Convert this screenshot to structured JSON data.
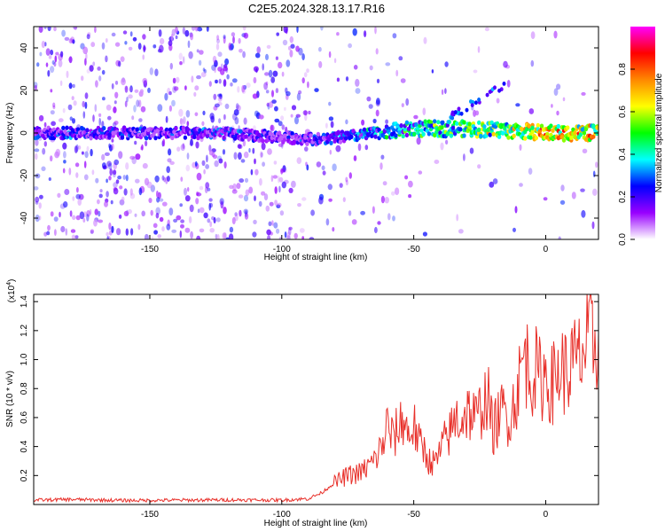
{
  "title": "C2E5.2024.328.13.17.R16",
  "chart_data": [
    {
      "type": "heatmap",
      "xlabel": "Height of straight line (km)",
      "ylabel": "Frequency (Hz)",
      "xlim": [
        -194,
        20
      ],
      "ylim": [
        -50,
        50
      ],
      "x_ticks": [
        -150,
        -100,
        -50,
        0
      ],
      "y_ticks": [
        -40,
        -20,
        0,
        20,
        40
      ],
      "colorbar": {
        "label": "Normalized spectral amplitude",
        "range": [
          0,
          1
        ],
        "ticks": [
          "0.0",
          "0.2",
          "0.4",
          "0.6",
          "0.8"
        ],
        "colors": [
          "#ffffff",
          "#9900ff",
          "#0000ff",
          "#00ffff",
          "#00ff00",
          "#ffff00",
          "#ff8800",
          "#ff0000",
          "#ff00ff"
        ]
      },
      "ridge": [
        {
          "x": -194,
          "f": 0,
          "amp": 0.3
        },
        {
          "x": -175,
          "f": 0,
          "amp": 0.35
        },
        {
          "x": -150,
          "f": 0,
          "amp": 0.3
        },
        {
          "x": -125,
          "f": 0,
          "amp": 0.35
        },
        {
          "x": -100,
          "f": -2,
          "amp": 0.25
        },
        {
          "x": -85,
          "f": -3,
          "amp": 0.35
        },
        {
          "x": -70,
          "f": -1,
          "amp": 0.45
        },
        {
          "x": -50,
          "f": 2,
          "amp": 0.55
        },
        {
          "x": -30,
          "f": 2,
          "amp": 0.65
        },
        {
          "x": -10,
          "f": 1,
          "amp": 0.8
        },
        {
          "x": 0,
          "f": 0,
          "amp": 0.9
        },
        {
          "x": 20,
          "f": 0,
          "amp": 0.85
        }
      ]
    },
    {
      "type": "line",
      "xlabel": "Height of straight line (km)",
      "ylabel": "SNR (10 * v/v)",
      "y_multiplier": "(x10",
      "y_multiplier_exp": "4",
      "y_multiplier_close": ")",
      "xlim": [
        -194,
        20
      ],
      "ylim": [
        0,
        14500
      ],
      "x_ticks": [
        -150,
        -100,
        -50,
        0
      ],
      "y_ticks": [
        {
          "value": 2000,
          "label": "0.2"
        },
        {
          "value": 4000,
          "label": "0.4"
        },
        {
          "value": 6000,
          "label": "0.6"
        },
        {
          "value": 8000,
          "label": "0.8"
        },
        {
          "value": 10000,
          "label": "1.0"
        },
        {
          "value": 12000,
          "label": "1.2"
        },
        {
          "value": 14000,
          "label": "1.4"
        }
      ],
      "series": [
        {
          "color": "#e8302a",
          "x": [
            -194,
            -180,
            -160,
            -140,
            -120,
            -100,
            -90,
            -85,
            -80,
            -75,
            -70,
            -65,
            -62,
            -60,
            -58,
            -56,
            -54,
            -52,
            -50,
            -48,
            -46,
            -44,
            -42,
            -40,
            -38,
            -36,
            -34,
            -32,
            -30,
            -28,
            -26,
            -24,
            -22,
            -20,
            -18,
            -16,
            -14,
            -12,
            -10,
            -8,
            -6,
            -4,
            -2,
            0,
            2,
            4,
            6,
            8,
            10,
            12,
            14,
            16,
            18,
            20
          ],
          "y": [
            300,
            350,
            280,
            300,
            320,
            300,
            400,
            800,
            1500,
            2000,
            2200,
            3000,
            4000,
            5500,
            4500,
            5200,
            6000,
            4800,
            5500,
            4200,
            3800,
            3000,
            2800,
            3600,
            4500,
            5000,
            6000,
            5800,
            6500,
            6200,
            5800,
            7000,
            7500,
            5000,
            6000,
            6500,
            6000,
            7000,
            8500,
            10500,
            9000,
            9300,
            8600,
            9000,
            8200,
            8800,
            9500,
            8900,
            9700,
            9800,
            10400,
            11100,
            11200,
            11800
          ]
        }
      ]
    }
  ]
}
